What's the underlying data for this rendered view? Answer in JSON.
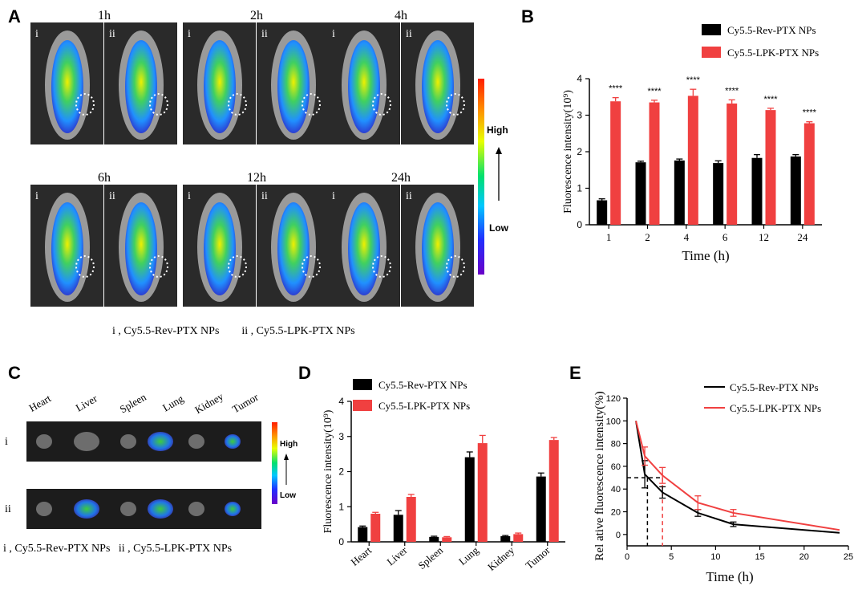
{
  "panels": {
    "A": "A",
    "B": "B",
    "C": "C",
    "D": "D",
    "E": "E"
  },
  "panel_a": {
    "timepoints": [
      "1h",
      "2h",
      "4h",
      "6h",
      "12h",
      "24h"
    ],
    "sublabels": [
      "i",
      "ii"
    ],
    "scale_high": "High",
    "scale_low": "Low",
    "legend": "i , Cy5.5-Rev-PTX NPs        ii , Cy5.5-LPK-PTX NPs"
  },
  "panel_c": {
    "organs": [
      "Heart",
      "Liver",
      "Spleen",
      "Lung",
      "Kidney",
      "Tumor"
    ],
    "rows": [
      "i",
      "ii"
    ],
    "scale_high": "High",
    "scale_low": "Low",
    "legend": "i , Cy5.5-Rev-PTX NPs   ii , Cy5.5-LPK-PTX NPs"
  },
  "colors": {
    "rev": "#000000",
    "lpk": "#f04040"
  },
  "chart_data": [
    {
      "id": "B",
      "type": "bar",
      "categories": [
        "1",
        "2",
        "4",
        "6",
        "12",
        "24"
      ],
      "series": [
        {
          "name": "Cy5.5-Rev-PTX NPs",
          "values": [
            0.67,
            1.71,
            1.76,
            1.69,
            1.83,
            1.87
          ],
          "errors": [
            0.04,
            0.03,
            0.04,
            0.06,
            0.09,
            0.05
          ]
        },
        {
          "name": "Cy5.5-LPK-PTX NPs",
          "values": [
            3.38,
            3.35,
            3.53,
            3.32,
            3.14,
            2.78
          ],
          "errors": [
            0.1,
            0.06,
            0.18,
            0.1,
            0.05,
            0.04
          ]
        }
      ],
      "annotations": [
        "****",
        "****",
        "****",
        "****",
        "****",
        "****"
      ],
      "xlabel": "Time (h)",
      "ylabel": "Fluorescence intensity(10⁹)",
      "ylim": [
        0,
        4
      ],
      "yticks": [
        "0",
        "1",
        "2",
        "3",
        "4"
      ]
    },
    {
      "id": "D",
      "type": "bar",
      "categories": [
        "Heart",
        "Liver",
        "Spleen",
        "Lung",
        "Kidney",
        "Tumor"
      ],
      "series": [
        {
          "name": "Cy5.5-Rev-PTX NPs",
          "values": [
            0.42,
            0.77,
            0.14,
            2.41,
            0.16,
            1.86
          ],
          "errors": [
            0.03,
            0.12,
            0.02,
            0.15,
            0.02,
            0.1
          ]
        },
        {
          "name": "Cy5.5-LPK-PTX NPs",
          "values": [
            0.8,
            1.28,
            0.13,
            2.81,
            0.22,
            2.9
          ],
          "errors": [
            0.04,
            0.07,
            0.02,
            0.22,
            0.03,
            0.07
          ]
        }
      ],
      "xlabel": "",
      "ylabel": "Fluorescence intensity(10⁹)",
      "ylim": [
        0,
        4
      ],
      "yticks": [
        "0",
        "1",
        "2",
        "3",
        "4"
      ]
    },
    {
      "id": "E",
      "type": "line",
      "series": [
        {
          "name": "Cy5.5-Rev-PTX NPs",
          "x": [
            1,
            2,
            4,
            8,
            12,
            24
          ],
          "y": [
            100,
            53,
            37,
            19,
            9,
            1.5
          ],
          "errors": [
            0,
            12,
            5,
            3,
            2,
            0
          ]
        },
        {
          "name": "Cy5.5-LPK-PTX NPs",
          "x": [
            1,
            2,
            4,
            8,
            12,
            24
          ],
          "y": [
            100,
            69,
            52,
            28,
            19,
            4
          ],
          "errors": [
            0,
            8,
            7,
            6,
            3,
            0
          ]
        }
      ],
      "reference": {
        "y": 50,
        "x_rev": 2.3,
        "x_lpk": 4.0
      },
      "xlabel": "Time (h)",
      "ylabel": "Rel ative fluorescence intensity(%)",
      "xlim": [
        0,
        25
      ],
      "ylim": [
        -10,
        120
      ],
      "xticks": [
        "0",
        "5",
        "10",
        "15",
        "20",
        "25"
      ],
      "yticks": [
        "0",
        "20",
        "40",
        "60",
        "80",
        "100",
        "120"
      ]
    }
  ]
}
